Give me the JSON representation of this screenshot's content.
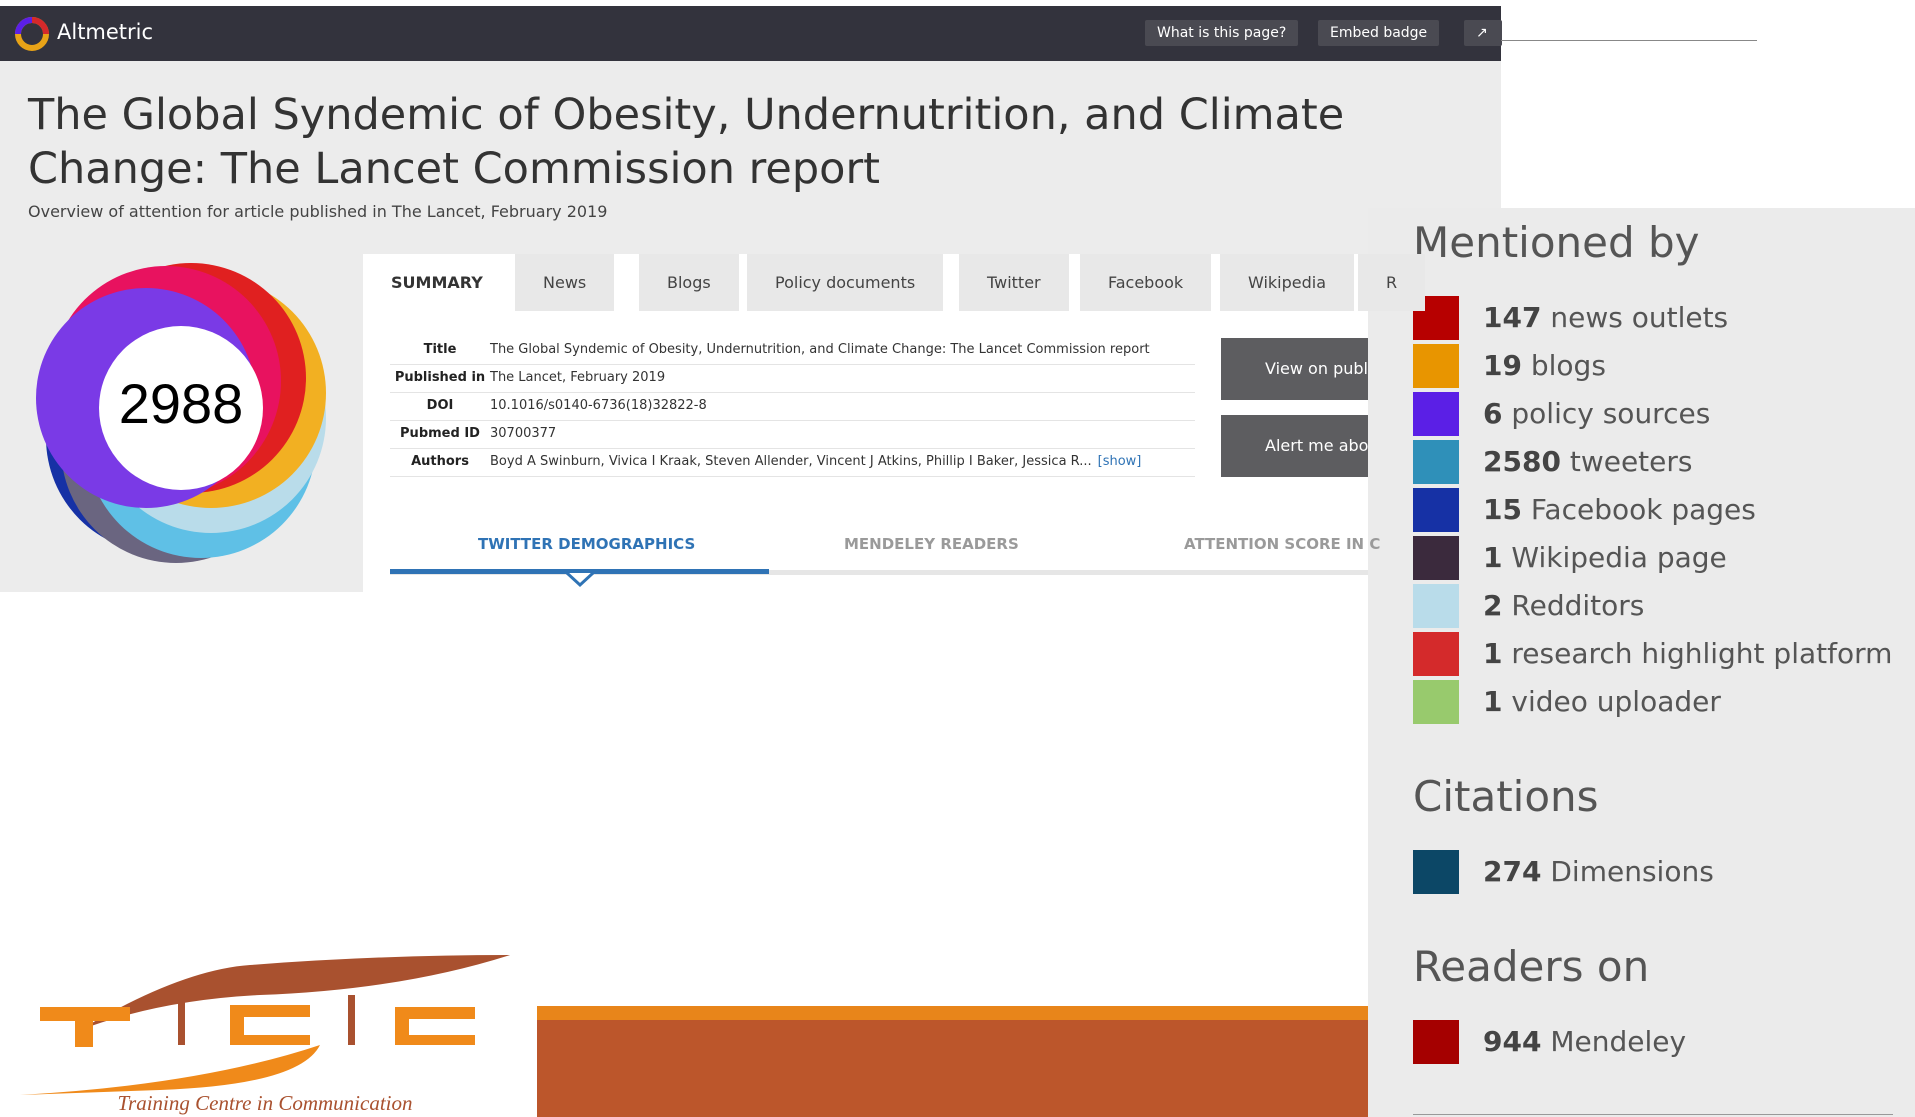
{
  "header": {
    "brand": "Altmetric",
    "buttons": [
      "What is this page?",
      "Embed badge"
    ]
  },
  "article": {
    "title": "The Global Syndemic of Obesity, Undernutrition, and Climate Change: The Lancet Commission report",
    "subtitle": "Overview of attention for article published in The Lancet, February 2019",
    "score": "2988"
  },
  "tabs": [
    "SUMMARY",
    "News",
    "Blogs",
    "Policy documents",
    "Twitter",
    "Facebook",
    "Wikipedia",
    "R"
  ],
  "details": [
    {
      "label": "Title",
      "value": "The Global Syndemic of Obesity, Undernutrition, and Climate Change: The Lancet Commission report"
    },
    {
      "label": "Published in",
      "value": "The Lancet, February 2019"
    },
    {
      "label": "DOI",
      "value": "10.1016/s0140-6736(18)32822-8"
    },
    {
      "label": "Pubmed ID",
      "value": "30700377"
    },
    {
      "label": "Authors",
      "value": "Boyd A Swinburn, Vivica I Kraak, Steven Allender, Vincent J Atkins, Phillip I Baker, Jessica R..."
    }
  ],
  "show_link": "[show]",
  "actions": [
    "View on publi",
    "Alert me abou"
  ],
  "subtabs": [
    "TWITTER DEMOGRAPHICS",
    "MENDELEY READERS",
    "ATTENTION SCORE IN C"
  ],
  "sections": [
    {
      "heading": "Mentioned by",
      "items": [
        {
          "count": "147",
          "label": "news outlets",
          "color": "#b70000"
        },
        {
          "count": "19",
          "label": "blogs",
          "color": "#e89500"
        },
        {
          "count": "6",
          "label": "policy sources",
          "color": "#5b1fe6"
        },
        {
          "count": "2580",
          "label": "tweeters",
          "color": "#2f90b9"
        },
        {
          "count": "15",
          "label": "Facebook pages",
          "color": "#1631a5"
        },
        {
          "count": "1",
          "label": "Wikipedia page",
          "color": "#3b2a3d"
        },
        {
          "count": "2",
          "label": "Redditors",
          "color": "#b9dcea"
        },
        {
          "count": "1",
          "label": "research highlight platform",
          "color": "#d42a2b"
        },
        {
          "count": "1",
          "label": "video uploader",
          "color": "#98ca6d"
        }
      ]
    },
    {
      "heading": "Citations",
      "items": [
        {
          "count": "274",
          "label": "Dimensions",
          "color": "#0c4766"
        }
      ]
    },
    {
      "heading": "Readers on",
      "items": [
        {
          "count": "944",
          "label": "Mendeley",
          "color": "#a50000"
        }
      ]
    }
  ],
  "logo": {
    "tagline": "Training Centre in Communication"
  }
}
